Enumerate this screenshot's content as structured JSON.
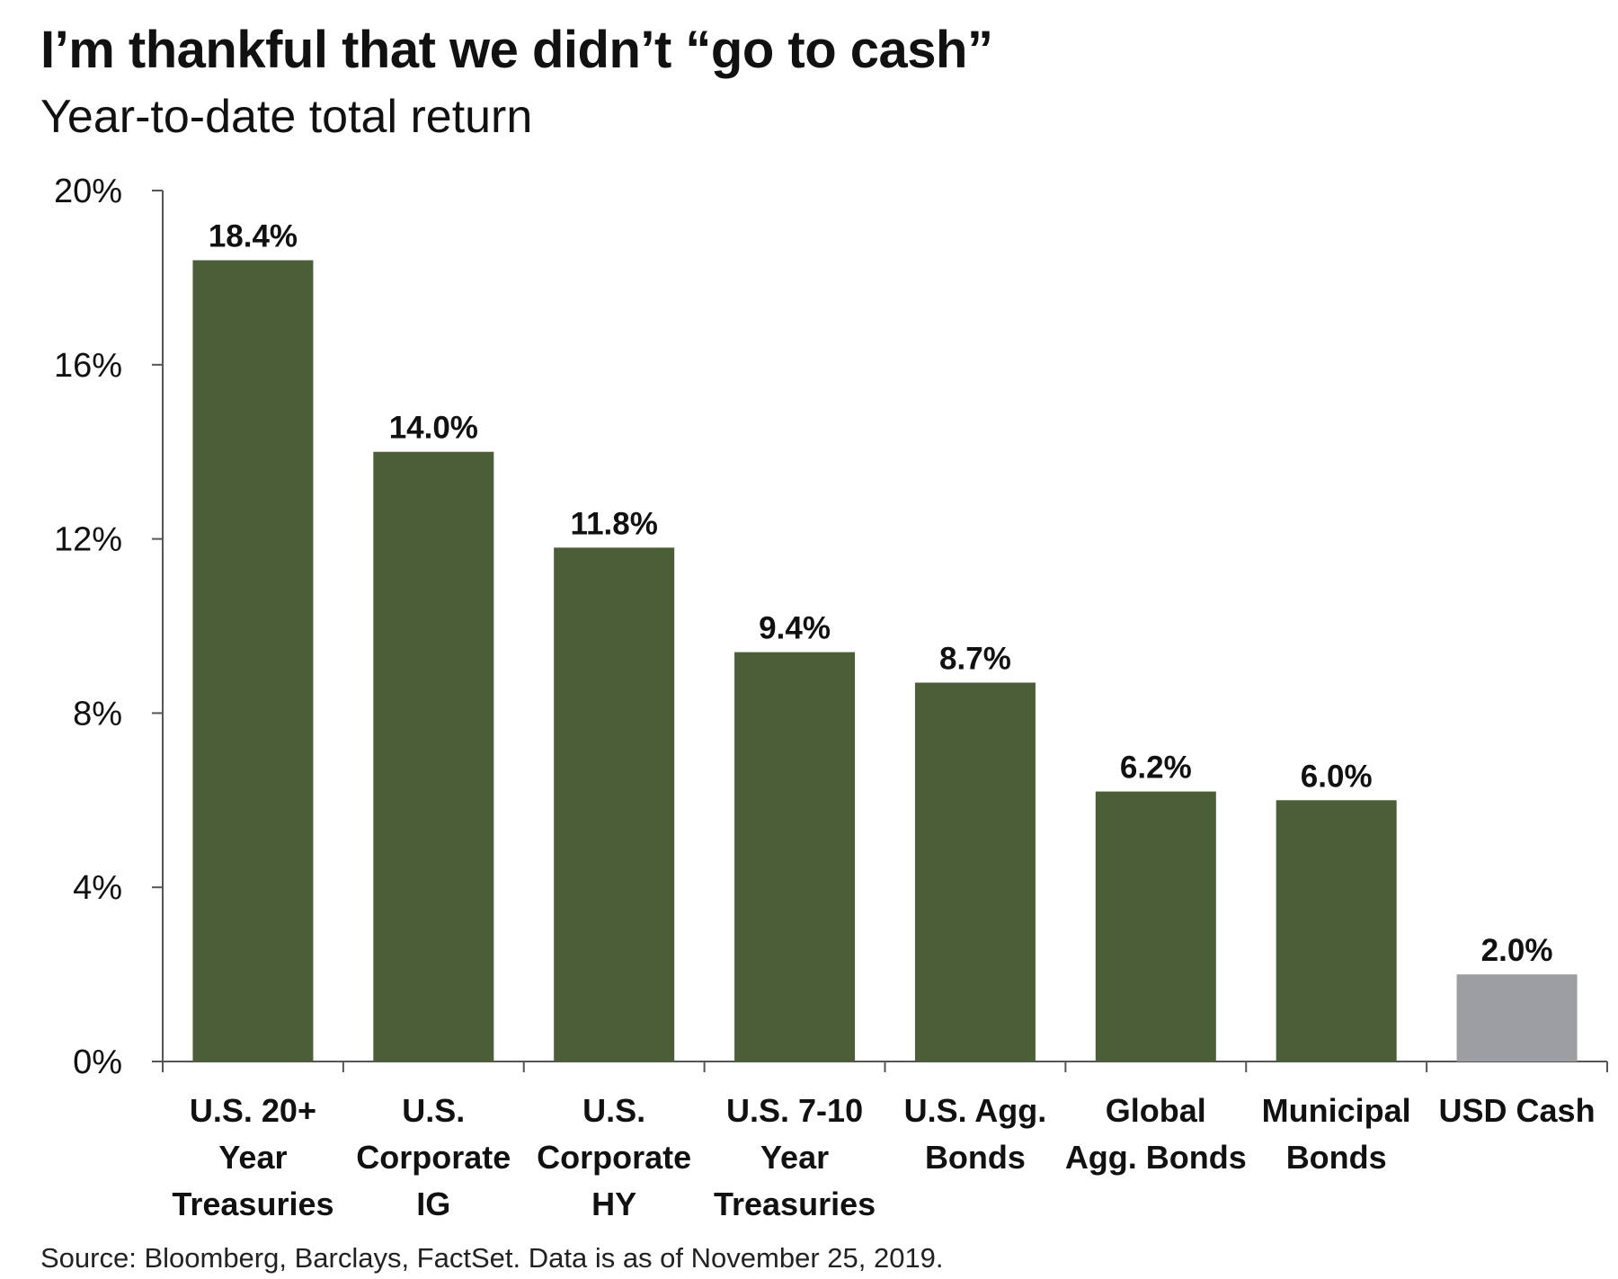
{
  "chart_data": {
    "type": "bar",
    "title": "I’m thankful that we didn’t “go to cash”",
    "subtitle": "Year-to-date total return",
    "categories": [
      [
        "U.S. 20+",
        "Year",
        "Treasuries"
      ],
      [
        "U.S.",
        "Corporate",
        "IG"
      ],
      [
        "U.S.",
        "Corporate",
        "HY"
      ],
      [
        "U.S. 7-10",
        "Year",
        "Treasuries"
      ],
      [
        "U.S. Agg.",
        "Bonds"
      ],
      [
        "Global",
        "Agg. Bonds"
      ],
      [
        "Municipal",
        "Bonds"
      ],
      [
        "USD Cash"
      ]
    ],
    "values": [
      18.4,
      14.0,
      11.8,
      9.4,
      8.7,
      6.2,
      6.0,
      2.0
    ],
    "data_labels": [
      "18.4%",
      "14.0%",
      "11.8%",
      "9.4%",
      "8.7%",
      "6.2%",
      "6.0%",
      "2.0%"
    ],
    "bar_colors": [
      "#4c5e37",
      "#4c5e37",
      "#4c5e37",
      "#4c5e37",
      "#4c5e37",
      "#4c5e37",
      "#4c5e37",
      "#9d9ea1"
    ],
    "ylim": [
      0,
      20
    ],
    "yticks": [
      0,
      4,
      8,
      12,
      16,
      20
    ],
    "ytick_labels": [
      "0%",
      "4%",
      "8%",
      "12%",
      "16%",
      "20%"
    ],
    "xlabel": "",
    "ylabel": "",
    "grid": false,
    "legend": "none"
  },
  "source": "Source: Bloomberg, Barclays, FactSet. Data is as of November 25, 2019."
}
